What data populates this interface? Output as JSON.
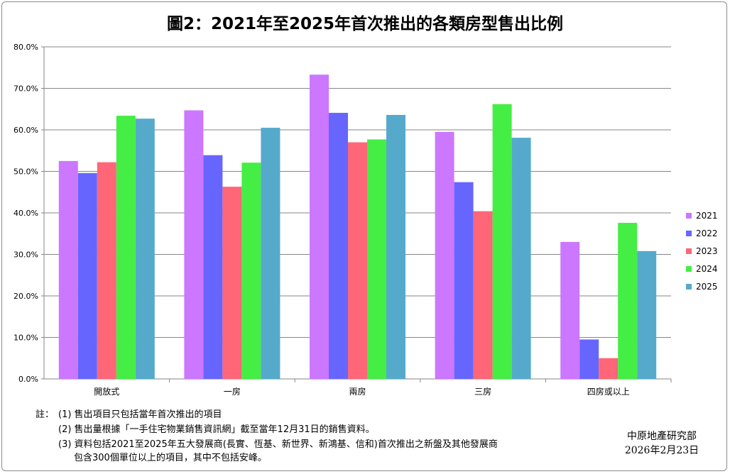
{
  "title": "圖2：2021年至2025年首次推出的各類房型售出比例",
  "chart_data": {
    "type": "bar",
    "categories": [
      "開放式",
      "一房",
      "兩房",
      "三房",
      "四房或以上"
    ],
    "series": [
      {
        "name": "2021",
        "color": "#cc77ff",
        "values": [
          52.5,
          64.7,
          73.3,
          59.5,
          33.0
        ]
      },
      {
        "name": "2022",
        "color": "#6666ff",
        "values": [
          49.6,
          53.9,
          64.1,
          47.4,
          9.5
        ]
      },
      {
        "name": "2023",
        "color": "#ff6677",
        "values": [
          52.2,
          46.3,
          57.0,
          40.4,
          5.0
        ]
      },
      {
        "name": "2024",
        "color": "#44ee44",
        "values": [
          63.4,
          52.1,
          57.7,
          66.2,
          37.6
        ]
      },
      {
        "name": "2025",
        "color": "#55aacc",
        "values": [
          62.7,
          60.5,
          63.6,
          58.1,
          30.8
        ]
      }
    ],
    "ylim": [
      0,
      80
    ],
    "yticks": [
      "0.0%",
      "10.0%",
      "20.0%",
      "30.0%",
      "40.0%",
      "50.0%",
      "60.0%",
      "70.0%",
      "80.0%"
    ],
    "grid": true,
    "legend_position": "right"
  },
  "notes": {
    "prefix": "註：",
    "n1": "(1) 售出項目只包括當年首次推出的項目",
    "n2": "(2) 售出量根據「一手住宅物業銷售資訊網」截至當年12月31日的銷售資料。",
    "n3a": "(3) 資料包括2021至2025年五大發展商(長實、恆基、新世界、新鴻基、信和)首次推出之新盤及其他發展商",
    "n3b": "包含300個單位以上的項目，其中不包括安峰。"
  },
  "source": {
    "org": "中原地產研究部",
    "date": "2026年2月23日"
  }
}
